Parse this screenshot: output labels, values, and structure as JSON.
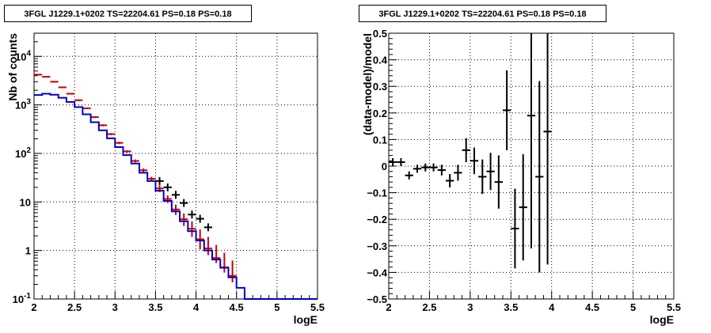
{
  "panels": [
    {
      "title": "3FGL J1229.1+0202 TS=22204.61 PS=0.18 PS=0.18"
    },
    {
      "title": "3FGL J1229.1+0202 TS=22204.61 PS=0.18 PS=0.18"
    }
  ],
  "chart_data": [
    {
      "type": "line",
      "title": "3FGL J1229.1+0202 TS=22204.61 PS=0.18 PS=0.18",
      "xlabel": "logE",
      "ylabel": "Nb of counts",
      "xlim": [
        2,
        5.5
      ],
      "ylim": [
        0.1,
        30000
      ],
      "yscale": "log",
      "grid": true,
      "xticks": [
        "2",
        "2.5",
        "3",
        "3.5",
        "4",
        "4.5",
        "5",
        "5.5"
      ],
      "yticks": [
        "10^-1",
        "1",
        "10",
        "10^2",
        "10^3",
        "10^4"
      ],
      "bin_edges": [
        2.0,
        2.1,
        2.2,
        2.3,
        2.4,
        2.5,
        2.6,
        2.7,
        2.8,
        2.9,
        3.0,
        3.1,
        3.2,
        3.3,
        3.4,
        3.5,
        3.6,
        3.7,
        3.8,
        3.9,
        4.0,
        4.1,
        4.2,
        4.3,
        4.4,
        4.5,
        4.6,
        4.7,
        4.8,
        4.9,
        5.0,
        5.1,
        5.2,
        5.3,
        5.4,
        5.5
      ],
      "series": [
        {
          "color": "#0000cc",
          "style": "histogram",
          "values": [
            1600,
            1700,
            1620,
            1400,
            1150,
            900,
            640,
            440,
            300,
            205,
            135,
            92,
            62,
            40,
            27,
            17,
            10.5,
            6.4,
            4.0,
            2.5,
            1.6,
            1.0,
            0.65,
            0.44,
            0.28,
            0.17,
            0.1,
            0.1,
            0.1,
            0.1,
            0.1,
            0.1,
            0.1,
            0.1,
            0.1
          ]
        },
        {
          "color": "#cc0000",
          "style": "errorbars",
          "x": [
            2.05,
            2.15,
            2.25,
            2.35,
            2.45,
            2.55,
            2.65,
            2.75,
            2.85,
            2.95,
            3.05,
            3.15,
            3.25,
            3.35,
            3.45,
            3.55,
            3.65,
            3.75,
            3.85,
            3.95,
            4.05,
            4.15,
            4.25,
            4.35,
            4.45
          ],
          "values": [
            4200,
            3800,
            3000,
            2300,
            1700,
            1250,
            850,
            560,
            380,
            250,
            165,
            110,
            70,
            45,
            30,
            19,
            11.5,
            7,
            4.4,
            2.8,
            1.7,
            1.1,
            0.7,
            0.45,
            0.3
          ],
          "err_low": [
            4100,
            3700,
            2900,
            2220,
            1640,
            1200,
            815,
            535,
            362,
            238,
            156,
            103,
            65,
            41,
            27,
            16,
            9.5,
            5.4,
            3.2,
            1.9,
            1.05,
            0.8,
            0.55,
            0.35,
            0.22
          ],
          "err_high": [
            4300,
            3900,
            3100,
            2380,
            1760,
            1300,
            885,
            585,
            398,
            262,
            174,
            117,
            75,
            49,
            33,
            22,
            13.6,
            8.8,
            5.8,
            4.0,
            2.7,
            1.9,
            1.3,
            0.9,
            0.62
          ]
        },
        {
          "color": "#000000",
          "style": "markers",
          "x": [
            3.55,
            3.65,
            3.75,
            3.85,
            3.95,
            4.05,
            4.15
          ],
          "values": [
            27,
            20,
            14,
            9.5,
            5.5,
            4.5,
            3.0
          ]
        }
      ]
    },
    {
      "type": "scatter",
      "title": "3FGL J1229.1+0202 TS=22204.61 PS=0.18 PS=0.18",
      "xlabel": "logE",
      "ylabel": "(data-model)/model",
      "xlim": [
        2,
        5.5
      ],
      "ylim": [
        -0.5,
        0.5
      ],
      "grid": true,
      "xticks": [
        "2",
        "2.5",
        "3",
        "3.5",
        "4",
        "4.5",
        "5",
        "5.5"
      ],
      "yticks": [
        "−0.5",
        "−0.4",
        "−0.3",
        "−0.2",
        "−0.1",
        "0",
        "0.1",
        "0.2",
        "0.3",
        "0.4",
        "0.5"
      ],
      "series": [
        {
          "color": "#000000",
          "x": [
            2.05,
            2.15,
            2.25,
            2.35,
            2.45,
            2.55,
            2.65,
            2.75,
            2.85,
            2.95,
            3.05,
            3.15,
            3.25,
            3.35,
            3.45,
            3.55,
            3.65,
            3.75,
            3.85,
            3.95
          ],
          "values": [
            0.015,
            0.015,
            -0.035,
            -0.01,
            -0.005,
            -0.005,
            -0.015,
            -0.055,
            -0.025,
            0.06,
            0.02,
            -0.04,
            -0.02,
            -0.06,
            0.21,
            -0.235,
            -0.155,
            0.19,
            -0.04,
            0.13
          ],
          "err": [
            0.015,
            0.015,
            0.015,
            0.015,
            0.015,
            0.015,
            0.02,
            0.025,
            0.03,
            0.045,
            0.05,
            0.065,
            0.07,
            0.1,
            0.15,
            0.15,
            0.2,
            0.5,
            0.36,
            0.5
          ]
        }
      ]
    }
  ]
}
